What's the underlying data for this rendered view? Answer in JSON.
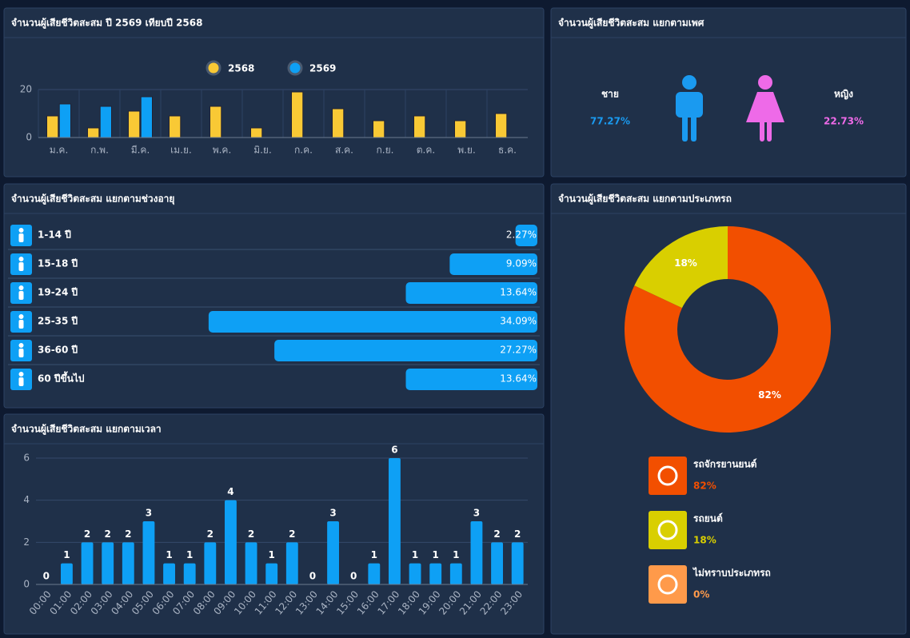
{
  "chart_data": [
    {
      "type": "bar",
      "title": "จำนวนผู้เสียชีวิตสะสม ปี 2569 เทียบปี 2568",
      "categories": [
        "ม.ค.",
        "ก.พ.",
        "มี.ค.",
        "เม.ย.",
        "พ.ค.",
        "มิ.ย.",
        "ก.ค.",
        "ส.ค.",
        "ก.ย.",
        "ต.ค.",
        "พ.ย.",
        "ธ.ค."
      ],
      "series": [
        {
          "name": "2568",
          "color": "#f9c935",
          "values": [
            9,
            4,
            11,
            9,
            13,
            4,
            19,
            12,
            7,
            9,
            7,
            10
          ]
        },
        {
          "name": "2569",
          "color": "#0ea0f5",
          "values": [
            14,
            13,
            17,
            null,
            null,
            null,
            null,
            null,
            null,
            null,
            null,
            null
          ]
        }
      ],
      "ylim": [
        0,
        20
      ],
      "yticks": [
        0,
        20
      ],
      "grid": true
    },
    {
      "type": "hbar",
      "title": "จำนวนผู้เสียชีวิตสะสม แยกตามช่วงอายุ",
      "categories": [
        "1-14 ปี",
        "15-18 ปี",
        "19-24 ปี",
        "25-35 ปี",
        "36-60 ปี",
        "60 ปีขึ้นไป"
      ],
      "values": [
        2.27,
        9.09,
        13.64,
        34.09,
        27.27,
        13.64
      ],
      "value_labels": [
        "2.27%",
        "9.09%",
        "13.64%",
        "34.09%",
        "27.27%",
        "13.64%"
      ],
      "color": "#0ea0f5",
      "xlim": [
        0,
        50
      ]
    },
    {
      "type": "bar",
      "title": "จำนวนผู้เสียชีวิตสะสม แยกตามเวลา",
      "categories": [
        "00:00",
        "01:00",
        "02:00",
        "03:00",
        "04:00",
        "05:00",
        "06:00",
        "07:00",
        "08:00",
        "09:00",
        "10:00",
        "11:00",
        "12:00",
        "13:00",
        "14:00",
        "15:00",
        "16:00",
        "17:00",
        "18:00",
        "19:00",
        "20:00",
        "21:00",
        "22:00",
        "23:00"
      ],
      "values": [
        0,
        1,
        2,
        2,
        2,
        3,
        1,
        1,
        2,
        4,
        2,
        1,
        2,
        0,
        3,
        0,
        1,
        6,
        1,
        1,
        1,
        3,
        2,
        2
      ],
      "color": "#0ea0f5",
      "ylim": [
        0,
        6
      ],
      "yticks": [
        0,
        2,
        4,
        6
      ],
      "grid": true
    },
    {
      "type": "pie",
      "title": "จำนวนผู้เสียชีวิตสะสม แยกตามประเภทรถ",
      "categories": [
        "รถจักรยานยนต์",
        "รถยนต์",
        "ไม่ทราบประเภทรถ"
      ],
      "values": [
        82,
        18,
        0
      ],
      "value_labels": [
        "82%",
        "18%",
        "0%"
      ],
      "colors": [
        "#f24f00",
        "#d9cf00",
        "#ff9a4a"
      ]
    }
  ],
  "gender": {
    "title": "จำนวนผู้เสียชีวิตสะสม แยกตามเพศ",
    "items": [
      {
        "label": "ชาย",
        "value": "77.27%",
        "color": "#1a9af0"
      },
      {
        "label": "หญิง",
        "value": "22.73%",
        "color": "#ee6ae8"
      }
    ]
  }
}
